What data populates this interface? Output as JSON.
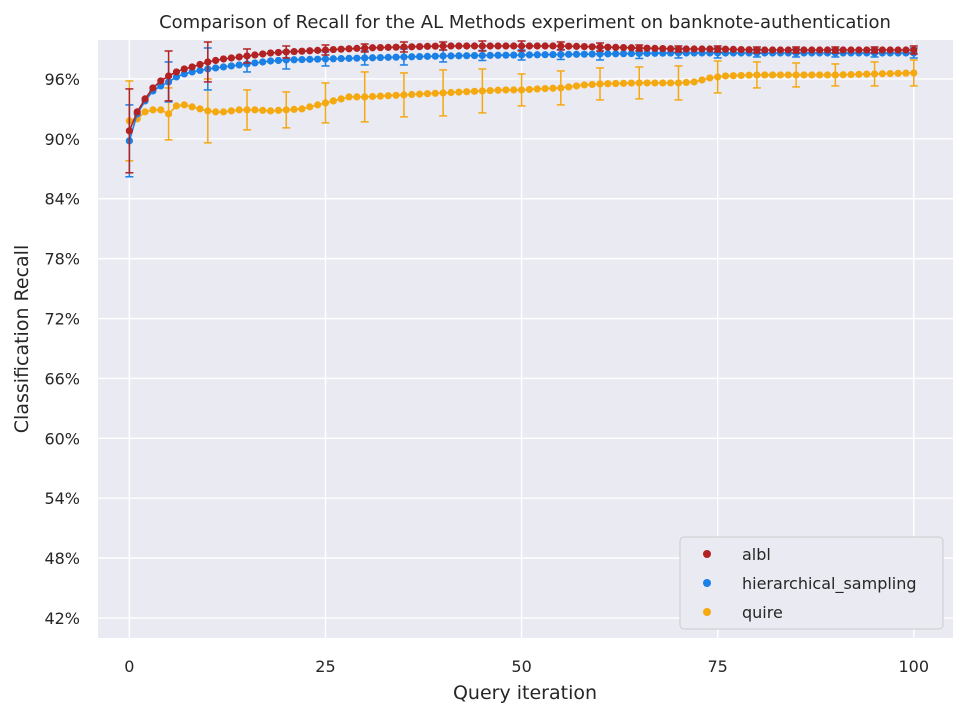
{
  "chart_data": {
    "type": "scatter",
    "title": "Comparison of Recall for the AL Methods experiment on banknote-authentication",
    "xlabel": "Query iteration",
    "ylabel": "Classification Recall",
    "xlim": [
      -4,
      105
    ],
    "ylim": [
      0.4,
      0.999
    ],
    "xticks": [
      0,
      25,
      50,
      75,
      100
    ],
    "xtick_labels": [
      "0",
      "25",
      "50",
      "75",
      "100"
    ],
    "yticks": [
      0.42,
      0.48,
      0.54,
      0.6,
      0.66,
      0.72,
      0.78,
      0.84,
      0.9,
      0.96
    ],
    "ytick_labels": [
      "42%",
      "48%",
      "54%",
      "60%",
      "66%",
      "72%",
      "78%",
      "84%",
      "90%",
      "96%"
    ],
    "grid": true,
    "legend_position": "bottom-right",
    "series": [
      {
        "name": "albl",
        "color": "#b22222",
        "anchors": [
          [
            0,
            0.908
          ],
          [
            1,
            0.927
          ],
          [
            2,
            0.94
          ],
          [
            3,
            0.951
          ],
          [
            4,
            0.958
          ],
          [
            5,
            0.963
          ],
          [
            6,
            0.967
          ],
          [
            7,
            0.97
          ],
          [
            8,
            0.972
          ],
          [
            10,
            0.977
          ],
          [
            12,
            0.98
          ],
          [
            15,
            0.983
          ],
          [
            18,
            0.986
          ],
          [
            20,
            0.987
          ],
          [
            25,
            0.989
          ],
          [
            30,
            0.991
          ],
          [
            35,
            0.992
          ],
          [
            40,
            0.993
          ],
          [
            50,
            0.993
          ],
          [
            55,
            0.993
          ],
          [
            60,
            0.992
          ],
          [
            65,
            0.991
          ],
          [
            70,
            0.99
          ],
          [
            75,
            0.99
          ],
          [
            80,
            0.989
          ],
          [
            90,
            0.989
          ],
          [
            100,
            0.989
          ]
        ],
        "err": [
          [
            0,
            0.042
          ],
          [
            5,
            0.025
          ],
          [
            10,
            0.02
          ],
          [
            15,
            0.007
          ],
          [
            20,
            0.006
          ],
          [
            25,
            0.005
          ],
          [
            30,
            0.004
          ],
          [
            35,
            0.005
          ],
          [
            40,
            0.004
          ],
          [
            45,
            0.005
          ],
          [
            50,
            0.005
          ],
          [
            55,
            0.004
          ],
          [
            60,
            0.004
          ],
          [
            65,
            0.003
          ],
          [
            70,
            0.003
          ],
          [
            75,
            0.003
          ],
          [
            80,
            0.003
          ],
          [
            85,
            0.003
          ],
          [
            90,
            0.003
          ],
          [
            95,
            0.003
          ],
          [
            100,
            0.004
          ]
        ]
      },
      {
        "name": "hierarchical_sampling",
        "color": "#1a80e6",
        "anchors": [
          [
            0,
            0.898
          ],
          [
            1,
            0.925
          ],
          [
            2,
            0.938
          ],
          [
            3,
            0.948
          ],
          [
            4,
            0.953
          ],
          [
            5,
            0.957
          ],
          [
            6,
            0.962
          ],
          [
            7,
            0.965
          ],
          [
            8,
            0.967
          ],
          [
            10,
            0.97
          ],
          [
            12,
            0.972
          ],
          [
            15,
            0.975
          ],
          [
            18,
            0.978
          ],
          [
            20,
            0.979
          ],
          [
            25,
            0.98
          ],
          [
            30,
            0.981
          ],
          [
            35,
            0.982
          ],
          [
            40,
            0.983
          ],
          [
            50,
            0.984
          ],
          [
            60,
            0.985
          ],
          [
            70,
            0.986
          ],
          [
            80,
            0.986
          ],
          [
            90,
            0.986
          ],
          [
            100,
            0.986
          ]
        ],
        "err": [
          [
            0,
            0.036
          ],
          [
            5,
            0.02
          ],
          [
            10,
            0.021
          ],
          [
            15,
            0.008
          ],
          [
            20,
            0.009
          ],
          [
            25,
            0.007
          ],
          [
            30,
            0.007
          ],
          [
            35,
            0.008
          ],
          [
            40,
            0.006
          ],
          [
            45,
            0.005
          ],
          [
            50,
            0.005
          ],
          [
            55,
            0.005
          ],
          [
            60,
            0.006
          ],
          [
            65,
            0.005
          ],
          [
            70,
            0.005
          ],
          [
            75,
            0.005
          ],
          [
            80,
            0.004
          ],
          [
            85,
            0.004
          ],
          [
            90,
            0.004
          ],
          [
            95,
            0.004
          ],
          [
            100,
            0.005
          ]
        ]
      },
      {
        "name": "quire",
        "color": "#f5a911",
        "anchors": [
          [
            0,
            0.918
          ],
          [
            1,
            0.92
          ],
          [
            2,
            0.927
          ],
          [
            3,
            0.929
          ],
          [
            4,
            0.929
          ],
          [
            5,
            0.925
          ],
          [
            6,
            0.933
          ],
          [
            7,
            0.934
          ],
          [
            8,
            0.932
          ],
          [
            10,
            0.928
          ],
          [
            11,
            0.927
          ],
          [
            12,
            0.927
          ],
          [
            14,
            0.929
          ],
          [
            16,
            0.929
          ],
          [
            18,
            0.928
          ],
          [
            20,
            0.929
          ],
          [
            22,
            0.93
          ],
          [
            24,
            0.934
          ],
          [
            26,
            0.938
          ],
          [
            28,
            0.942
          ],
          [
            30,
            0.942
          ],
          [
            35,
            0.944
          ],
          [
            40,
            0.946
          ],
          [
            45,
            0.948
          ],
          [
            48,
            0.949
          ],
          [
            50,
            0.949
          ],
          [
            52,
            0.95
          ],
          [
            55,
            0.951
          ],
          [
            58,
            0.954
          ],
          [
            60,
            0.955
          ],
          [
            65,
            0.956
          ],
          [
            70,
            0.956
          ],
          [
            72,
            0.957
          ],
          [
            74,
            0.961
          ],
          [
            76,
            0.963
          ],
          [
            80,
            0.964
          ],
          [
            85,
            0.964
          ],
          [
            90,
            0.964
          ],
          [
            95,
            0.965
          ],
          [
            100,
            0.966
          ]
        ],
        "err": [
          [
            0,
            0.04
          ],
          [
            5,
            0.026
          ],
          [
            10,
            0.032
          ],
          [
            15,
            0.02
          ],
          [
            20,
            0.018
          ],
          [
            25,
            0.02
          ],
          [
            30,
            0.025
          ],
          [
            35,
            0.022
          ],
          [
            40,
            0.023
          ],
          [
            45,
            0.022
          ],
          [
            50,
            0.016
          ],
          [
            55,
            0.017
          ],
          [
            60,
            0.016
          ],
          [
            65,
            0.016
          ],
          [
            70,
            0.017
          ],
          [
            75,
            0.016
          ],
          [
            80,
            0.013
          ],
          [
            85,
            0.012
          ],
          [
            90,
            0.011
          ],
          [
            95,
            0.012
          ],
          [
            100,
            0.013
          ]
        ]
      }
    ]
  }
}
